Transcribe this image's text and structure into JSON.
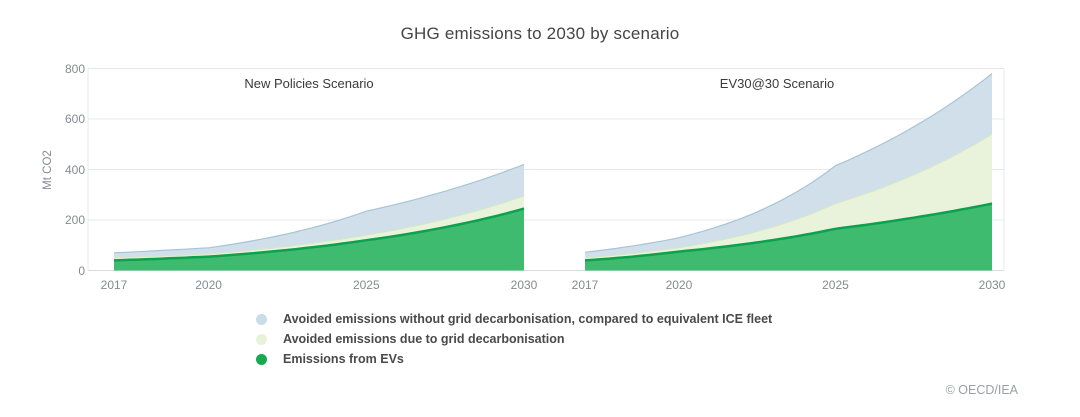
{
  "title": "GHG emissions to 2030 by scenario",
  "y_axis_label": "Mt CO2",
  "copyright": "© OECD/IEA",
  "legend": {
    "items": [
      {
        "label": "Avoided emissions without grid decarbonisation, compared to equivalent ICE fleet",
        "color": "#c9dce8"
      },
      {
        "label": "Avoided emissions due to grid decarbonisation",
        "color": "#e7f2d9"
      },
      {
        "label": "Emissions from EVs",
        "color": "#16a94f"
      }
    ]
  },
  "colors": {
    "avoided_no_grid_fill": "#d0dfe9",
    "avoided_no_grid_edge": "#a6c5d7",
    "avoided_grid_fill": "#e9f3dc",
    "avoided_grid_edge": "#d4e9c2",
    "ev_fill": "#3ebb6e",
    "ev_edge": "#0ca04f",
    "grid_line": "#e4e8ec",
    "axis_line": "#d5dde4"
  },
  "chart_data": {
    "type": "area",
    "stacked": true,
    "title": "GHG emissions to 2030 by scenario",
    "ylabel": "Mt CO2",
    "ylim": [
      0,
      800
    ],
    "y_ticks": [
      0,
      200,
      400,
      600,
      800
    ],
    "x": [
      2017,
      2020,
      2025,
      2030
    ],
    "grid": true,
    "legend_position": "bottom-left",
    "panels": [
      {
        "label": "New Policies Scenario",
        "x_ticks": [
          "2017",
          "2020",
          "2025",
          "2030"
        ],
        "series": [
          {
            "name": "Emissions from EVs",
            "values": [
              40,
              55,
              120,
              245
            ]
          },
          {
            "name": "Avoided emissions due to grid decarbonisation",
            "values": [
              10,
              10,
              20,
              50
            ]
          },
          {
            "name": "Avoided emissions without grid decarbonisation, compared to equivalent ICE fleet",
            "values": [
              20,
              25,
              95,
              125
            ]
          }
        ]
      },
      {
        "label": "EV30@30 Scenario",
        "x_ticks": [
          "2017",
          "2020",
          "2025",
          "2030"
        ],
        "series": [
          {
            "name": "Emissions from EVs",
            "values": [
              40,
              75,
              165,
              265
            ]
          },
          {
            "name": "Avoided emissions due to grid decarbonisation",
            "values": [
              10,
              15,
              100,
              275
            ]
          },
          {
            "name": "Avoided emissions without grid decarbonisation, compared to equivalent ICE fleet",
            "values": [
              22,
              40,
              150,
              240
            ]
          }
        ]
      }
    ]
  }
}
